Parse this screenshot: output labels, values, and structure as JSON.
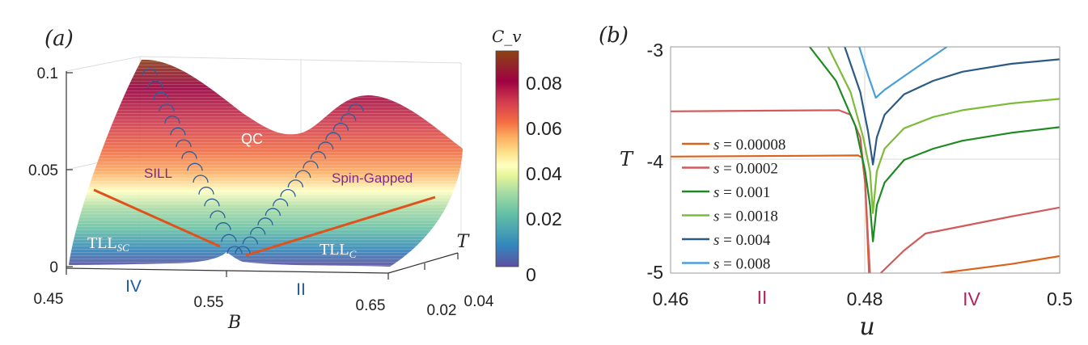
{
  "chart_data": [
    {
      "panel_label": "(a)",
      "type": "surface",
      "xlabel": "B",
      "ylabel": "T",
      "x_ticks": [
        "0.45",
        "0.55",
        "0.65"
      ],
      "y_ticks": [
        "0.02",
        "0.04"
      ],
      "z_ticks": [
        "0",
        "0.05",
        "0.1"
      ],
      "xlim": [
        0.45,
        0.65
      ],
      "ylim": [
        0,
        0.04
      ],
      "zlim": [
        0,
        0.1
      ],
      "colorbar": {
        "label": "C_v",
        "label_main": "C",
        "label_sub": "v",
        "ticks": [
          "0",
          "0.02",
          "0.04",
          "0.06",
          "0.08"
        ],
        "range": [
          0,
          0.095
        ],
        "colormap": [
          "#5e4fa2",
          "#3288bd",
          "#66c2a5",
          "#abdda4",
          "#e6f598",
          "#ffffbf",
          "#fee08b",
          "#fdae61",
          "#f46d43",
          "#d53e4f",
          "#9e0142",
          "#8b4513"
        ]
      },
      "annotations": {
        "qc": "QC",
        "sill": "SILL",
        "spin_gapped": "Spin-Gapped",
        "tll_sc_main": "TLL",
        "tll_sc_sub": "SC",
        "tll_c_main": "TLL",
        "tll_c_sub": "C",
        "region_left": "IV",
        "region_right": "II"
      },
      "colors": {
        "crossover_line": "#e0521b",
        "markers": "#2b5f9a",
        "phase_label": "#7b2a8e",
        "region_label": "#1f5a9a"
      }
    },
    {
      "panel_label": "(b)",
      "type": "line",
      "xlabel": "u",
      "ylabel": "T",
      "xlim": [
        0.46,
        0.5
      ],
      "ylim": [
        -5,
        -3
      ],
      "x_ticks": [
        "0.46",
        "0.48",
        "0.5"
      ],
      "y_ticks": [
        "-3",
        "-4",
        "-5"
      ],
      "grid": "partial",
      "legend": "left",
      "region_labels": {
        "left": "II",
        "right": "IV"
      },
      "region_color": "#b0245e",
      "series": [
        {
          "name": "s = 0.00008",
          "var": "s",
          "value": "= 0.00008",
          "color": "#d9621c",
          "segments": [
            [
              [
                0.46,
                -3.97
              ],
              [
                0.4793,
                -3.96
              ],
              [
                0.4797,
                -3.98
              ],
              [
                0.48,
                -4.2
              ],
              [
                0.4802,
                -4.6
              ],
              [
                0.4804,
                -5
              ]
            ],
            [
              [
                0.4878,
                -5
              ],
              [
                0.495,
                -4.92
              ],
              [
                0.5,
                -4.85
              ]
            ]
          ]
        },
        {
          "name": "s = 0.0002",
          "var": "s",
          "value": "= 0.0002",
          "color": "#d25a5a",
          "segments": [
            [
              [
                0.46,
                -3.57
              ],
              [
                0.4773,
                -3.56
              ],
              [
                0.4785,
                -3.6
              ],
              [
                0.4795,
                -3.8
              ],
              [
                0.48,
                -4.2
              ],
              [
                0.4803,
                -4.7
              ],
              [
                0.4805,
                -5
              ]
            ],
            [
              [
                0.4816,
                -5
              ],
              [
                0.484,
                -4.8
              ],
              [
                0.4862,
                -4.65
              ],
              [
                0.495,
                -4.5
              ],
              [
                0.5,
                -4.42
              ]
            ]
          ]
        },
        {
          "name": "s = 0.001",
          "var": "s",
          "value": "= 0.001",
          "color": "#1f8a22",
          "segments": [
            [
              [
                0.4743,
                -3
              ],
              [
                0.477,
                -3.3
              ],
              [
                0.479,
                -3.7
              ],
              [
                0.48,
                -4.1
              ],
              [
                0.4805,
                -4.4
              ],
              [
                0.4808,
                -4.72
              ],
              [
                0.4812,
                -4.4
              ],
              [
                0.482,
                -4.2
              ],
              [
                0.484,
                -4.0
              ],
              [
                0.487,
                -3.9
              ],
              [
                0.49,
                -3.83
              ],
              [
                0.495,
                -3.76
              ],
              [
                0.5,
                -3.71
              ]
            ]
          ]
        },
        {
          "name": "s = 0.0018",
          "var": "s",
          "value": "= 0.0018",
          "color": "#7dbb3a",
          "segments": [
            [
              [
                0.4762,
                -3
              ],
              [
                0.4785,
                -3.4
              ],
              [
                0.4798,
                -3.8
              ],
              [
                0.4805,
                -4.1
              ],
              [
                0.4808,
                -4.47
              ],
              [
                0.4812,
                -4.1
              ],
              [
                0.482,
                -3.9
              ],
              [
                0.484,
                -3.72
              ],
              [
                0.487,
                -3.62
              ],
              [
                0.49,
                -3.56
              ],
              [
                0.495,
                -3.5
              ],
              [
                0.5,
                -3.46
              ]
            ]
          ]
        },
        {
          "name": "s = 0.004",
          "var": "s",
          "value": "= 0.004",
          "color": "#2b5a85",
          "segments": [
            [
              [
                0.4779,
                -3
              ],
              [
                0.4795,
                -3.4
              ],
              [
                0.4803,
                -3.75
              ],
              [
                0.4808,
                -4.04
              ],
              [
                0.4812,
                -3.8
              ],
              [
                0.482,
                -3.6
              ],
              [
                0.484,
                -3.42
              ],
              [
                0.487,
                -3.3
              ],
              [
                0.49,
                -3.22
              ],
              [
                0.495,
                -3.15
              ],
              [
                0.5,
                -3.11
              ]
            ]
          ]
        },
        {
          "name": "s = 0.008",
          "var": "s",
          "value": "= 0.008",
          "color": "#4a9fd8",
          "segments": [
            [
              [
                0.4794,
                -3
              ],
              [
                0.4803,
                -3.25
              ],
              [
                0.4811,
                -3.45
              ],
              [
                0.482,
                -3.38
              ],
              [
                0.485,
                -3.2
              ],
              [
                0.4884,
                -3
              ]
            ]
          ]
        }
      ]
    }
  ]
}
